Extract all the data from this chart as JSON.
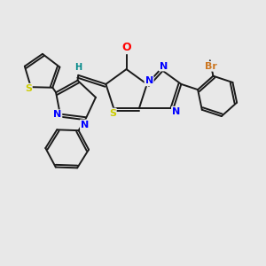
{
  "background_color": "#e8e8e8",
  "bond_color": "#1a1a1a",
  "atom_colors": {
    "O": "#ff0000",
    "N": "#0000ff",
    "S": "#cccc00",
    "Br": "#cc7722",
    "H": "#008888",
    "C": "#1a1a1a"
  },
  "figsize": [
    3.0,
    3.0
  ],
  "dpi": 100,
  "xlim": [
    0,
    10
  ],
  "ylim": [
    0,
    10
  ]
}
